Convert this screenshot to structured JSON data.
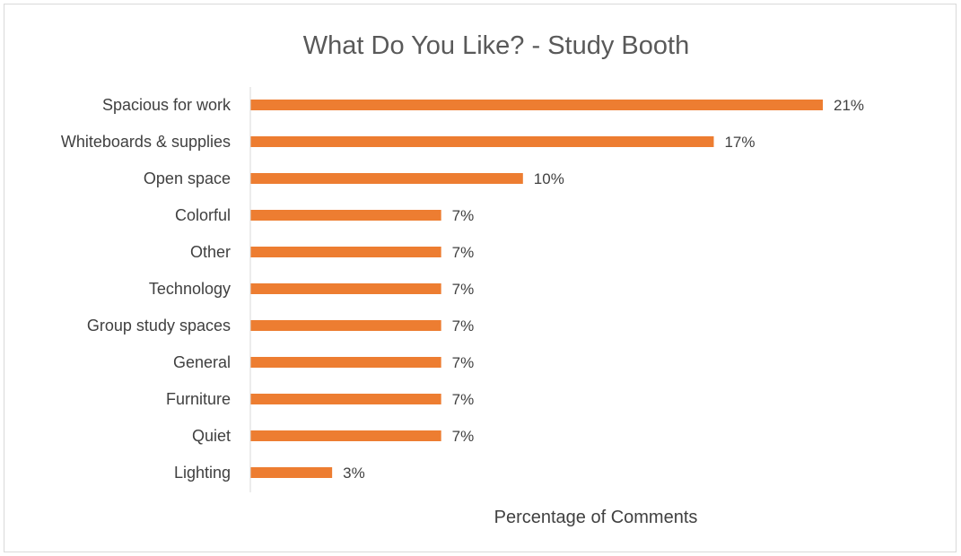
{
  "chart_data": {
    "type": "bar",
    "orientation": "horizontal",
    "title": "What Do You Like? - Study Booth",
    "xlabel": "Percentage of Comments",
    "ylabel": "",
    "categories": [
      "Spacious for work",
      "Whiteboards & supplies",
      "Open space",
      "Colorful",
      "Other",
      "Technology",
      "Group study spaces",
      "General",
      "Furniture",
      "Quiet",
      "Lighting"
    ],
    "values": [
      21,
      17,
      10,
      7,
      7,
      7,
      7,
      7,
      7,
      7,
      3
    ],
    "value_labels": [
      "21%",
      "17%",
      "10%",
      "7%",
      "7%",
      "7%",
      "7%",
      "7%",
      "7%",
      "7%",
      "3%"
    ],
    "xlim": [
      0,
      21
    ],
    "grid": false,
    "legend": "none",
    "bar_color": "#ED7D31",
    "axis_color": "#d9d9d9"
  }
}
